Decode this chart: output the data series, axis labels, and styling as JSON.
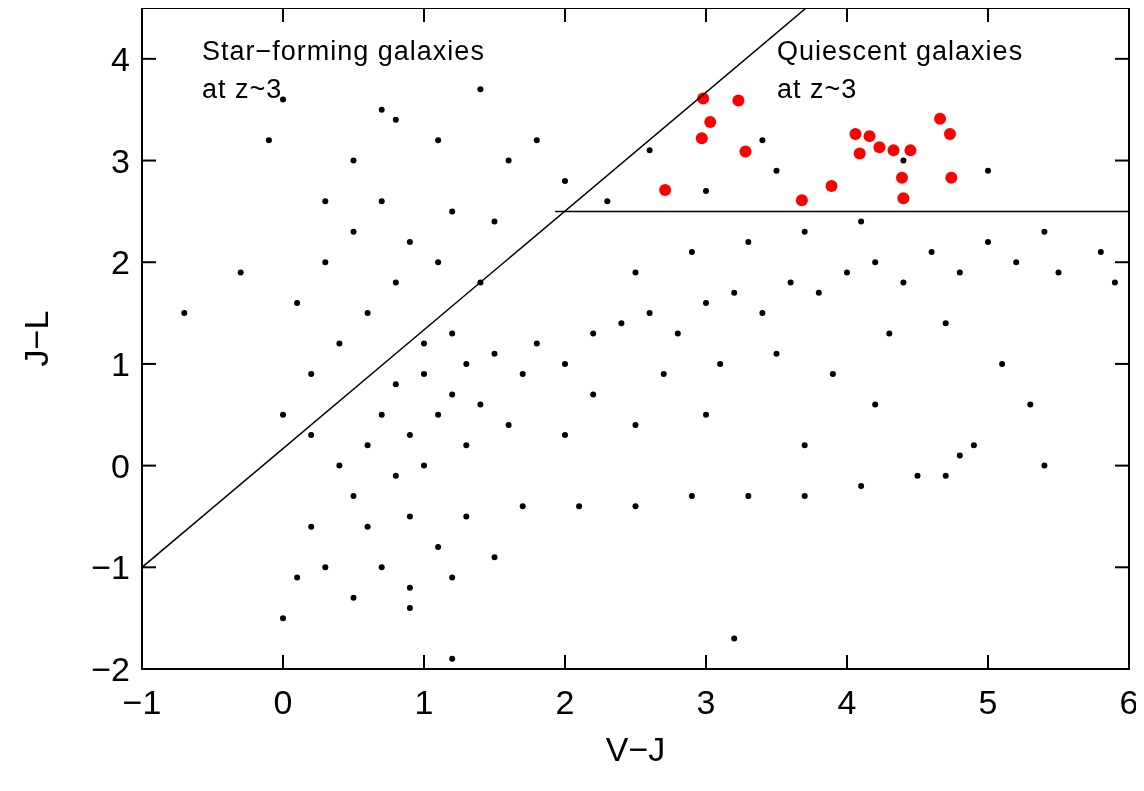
{
  "chart_data": {
    "type": "scatter",
    "xlabel": "V−J",
    "ylabel": "J−L",
    "xlim": [
      -1,
      6
    ],
    "ylim": [
      -2,
      4.5
    ],
    "xticks": [
      {
        "value": -1,
        "label": "−1"
      },
      0,
      1,
      2,
      3,
      4,
      5,
      6
    ],
    "yticks": [
      {
        "value": -2,
        "label": "−2"
      },
      {
        "value": -1,
        "label": "−1"
      },
      0,
      1,
      2,
      3,
      4
    ],
    "annotations": [
      "Star−forming galaxies\nat z~3",
      "Quiescent galaxies\nat z~3"
    ],
    "grid": false,
    "series": [
      {
        "color": "#000000",
        "marker": "circle",
        "x": [
          0.8,
          1.0,
          1.2,
          1.3,
          1.1,
          1.4,
          0.9,
          1.5,
          1.0,
          1.2,
          0.7,
          0.6,
          0.8,
          1.0,
          1.3,
          1.6,
          1.7,
          1.8,
          2.0,
          2.2,
          2.4,
          2.6,
          2.8,
          3.0,
          3.2,
          3.4,
          3.6,
          3.8,
          4.0,
          4.2,
          4.4,
          4.6,
          4.8,
          5.0,
          5.2,
          5.5,
          5.8,
          2.5,
          2.9,
          3.3,
          3.7,
          4.1,
          2.2,
          2.7,
          3.1,
          3.5,
          3.9,
          4.3,
          4.7,
          5.1,
          5.3,
          4.9,
          2.0,
          2.5,
          0.5,
          0.9,
          1.3,
          1.7,
          2.1,
          2.5,
          2.9,
          3.3,
          3.7,
          4.1,
          4.5,
          4.8,
          1.1,
          0.7,
          0.3,
          0.1,
          0.9,
          0.5,
          1.2,
          1.5,
          0.2,
          0.4,
          0.6,
          0.1,
          0.3,
          0.5,
          0.7,
          0.9,
          1.1,
          0.4,
          0.2,
          0.6,
          0.8,
          1.2,
          1.5,
          1.4,
          0.8,
          1.1,
          1.6,
          0.5,
          0.3,
          0.0,
          -0.3,
          -0.7,
          -0.1,
          0.0,
          1.4,
          0.7,
          0.2,
          3.0,
          3.5,
          4.4,
          5.0,
          5.4,
          5.9,
          3.4,
          2.6,
          2.0,
          1.8,
          2.3,
          3.2,
          1.2,
          4.7,
          5.4,
          3.0,
          3.7,
          4.2,
          0.9,
          0.0
        ],
        "values": [
          0.8,
          0.9,
          0.7,
          1.0,
          0.5,
          0.6,
          0.3,
          1.1,
          1.2,
          1.3,
          0.5,
          0.2,
          -0.1,
          0.0,
          0.2,
          0.4,
          0.9,
          1.2,
          1.0,
          1.3,
          1.4,
          1.5,
          1.3,
          1.6,
          1.7,
          1.5,
          1.8,
          1.7,
          1.9,
          2.0,
          1.8,
          2.1,
          1.9,
          2.2,
          2.0,
          1.9,
          2.1,
          1.9,
          2.1,
          2.2,
          2.3,
          2.4,
          0.7,
          0.9,
          1.0,
          1.1,
          0.9,
          1.3,
          1.4,
          1.0,
          0.6,
          0.2,
          0.3,
          0.4,
          -0.3,
          -0.5,
          -0.5,
          -0.4,
          -0.4,
          -0.4,
          -0.3,
          -0.3,
          -0.3,
          -0.2,
          -0.1,
          0.1,
          -0.8,
          -1.0,
          -1.0,
          -1.1,
          -1.2,
          -1.3,
          -1.1,
          -0.9,
          -0.6,
          0.0,
          -0.6,
          1.6,
          2.0,
          2.3,
          2.6,
          2.2,
          2.0,
          1.2,
          0.9,
          1.5,
          1.8,
          2.5,
          2.4,
          1.8,
          3.4,
          3.2,
          3.0,
          3.0,
          2.6,
          0.5,
          1.9,
          1.5,
          3.2,
          3.6,
          3.7,
          3.5,
          0.3,
          2.7,
          2.9,
          3.0,
          2.9,
          2.3,
          1.8,
          3.2,
          3.1,
          2.8,
          3.2,
          2.6,
          -1.7,
          -1.9,
          -0.1,
          0.0,
          0.5,
          0.2,
          0.6,
          -1.4,
          -1.5
        ]
      },
      {
        "color": "#ff0000",
        "marker": "circle",
        "x": [
          2.71,
          2.98,
          2.97,
          3.03,
          3.23,
          3.28,
          3.68,
          3.89,
          4.06,
          4.09,
          4.16,
          4.23,
          4.33,
          4.39,
          4.4,
          4.45,
          4.66,
          4.73,
          4.74
        ],
        "values": [
          2.71,
          3.61,
          3.22,
          3.38,
          3.59,
          3.09,
          2.61,
          2.75,
          3.26,
          3.07,
          3.24,
          3.13,
          3.1,
          2.83,
          2.63,
          3.1,
          3.41,
          3.26,
          2.83
        ]
      },
      {
        "type": "line",
        "color": "#000000",
        "line_style": "solid",
        "x": [
          -1,
          3.71
        ],
        "values": [
          -1,
          4.5
        ]
      },
      {
        "type": "line",
        "color": "#000000",
        "line_style": "solid",
        "x": [
          1.93,
          6
        ],
        "values": [
          2.5,
          2.5
        ]
      }
    ]
  }
}
